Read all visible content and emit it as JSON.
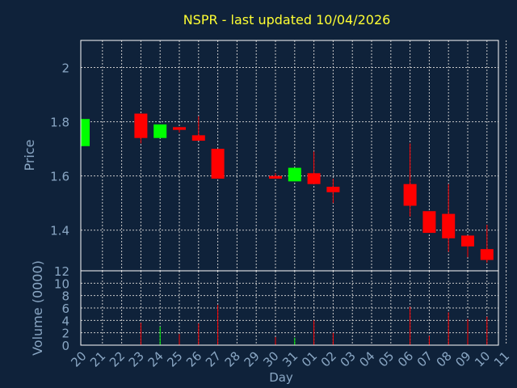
{
  "chart_data": {
    "type": "candlestick",
    "title": "NSPR - last updated 10/04/2026",
    "xlabel": "Day",
    "colors": {
      "background": "#0f223a",
      "grid": "#c8c8c8",
      "axis_text": "#8aa7c4",
      "title": "#ffff33",
      "up": "#00ff00",
      "down": "#ff0000",
      "axis_line": "#ffffff"
    },
    "price_panel": {
      "ylabel": "Price",
      "ylim": [
        1.25,
        2.1
      ],
      "y_ticks": [
        1.4,
        1.6,
        1.8,
        2.0
      ],
      "y_tick_labels": [
        "1.4",
        "1.6",
        "1.8",
        "2"
      ],
      "grid": true
    },
    "volume_panel": {
      "ylabel": "Volume (0000)",
      "ylim": [
        0,
        12
      ],
      "y_ticks": [
        0,
        2,
        4,
        6,
        8,
        10,
        12
      ],
      "y_tick_labels": [
        "0",
        "2",
        "4",
        "6",
        "8",
        "10",
        "12"
      ],
      "grid": true
    },
    "x_tick_labels": [
      "20",
      "21",
      "22",
      "23",
      "24",
      "25",
      "26",
      "27",
      "28",
      "29",
      "30",
      "31",
      "01",
      "02",
      "03",
      "04",
      "05",
      "06",
      "07",
      "08",
      "09",
      "10",
      "11"
    ],
    "candles": [
      {
        "x": "20",
        "open": 1.71,
        "high": 1.81,
        "low": 1.71,
        "close": 1.81,
        "volume": 0
      },
      {
        "x": "23",
        "open": 1.83,
        "high": 1.83,
        "low": 1.72,
        "close": 1.74,
        "volume": 3.6
      },
      {
        "x": "24",
        "open": 1.74,
        "high": 1.79,
        "low": 1.74,
        "close": 1.79,
        "volume": 3.0
      },
      {
        "x": "25",
        "open": 1.78,
        "high": 1.78,
        "low": 1.76,
        "close": 1.77,
        "volume": 1.8
      },
      {
        "x": "26",
        "open": 1.75,
        "high": 1.82,
        "low": 1.73,
        "close": 1.73,
        "volume": 3.5
      },
      {
        "x": "27",
        "open": 1.7,
        "high": 1.7,
        "low": 1.59,
        "close": 1.59,
        "volume": 6.5
      },
      {
        "x": "30",
        "open": 1.6,
        "high": 1.61,
        "low": 1.59,
        "close": 1.59,
        "volume": 1.3
      },
      {
        "x": "31",
        "open": 1.58,
        "high": 1.63,
        "low": 1.58,
        "close": 1.63,
        "volume": 1.2
      },
      {
        "x": "01",
        "open": 1.61,
        "high": 1.69,
        "low": 1.57,
        "close": 1.57,
        "volume": 4.0
      },
      {
        "x": "02",
        "open": 1.56,
        "high": 1.59,
        "low": 1.5,
        "close": 1.54,
        "volume": 2.0
      },
      {
        "x": "06",
        "open": 1.57,
        "high": 1.72,
        "low": 1.45,
        "close": 1.49,
        "volume": 6.2
      },
      {
        "x": "07",
        "open": 1.47,
        "high": 1.47,
        "low": 1.39,
        "close": 1.39,
        "volume": 1.5
      },
      {
        "x": "08",
        "open": 1.46,
        "high": 1.57,
        "low": 1.32,
        "close": 1.37,
        "volume": 5.3
      },
      {
        "x": "09",
        "open": 1.38,
        "high": 1.38,
        "low": 1.3,
        "close": 1.34,
        "volume": 4.2
      },
      {
        "x": "10",
        "open": 1.33,
        "high": 1.42,
        "low": 1.28,
        "close": 1.29,
        "volume": 4.6
      }
    ]
  }
}
